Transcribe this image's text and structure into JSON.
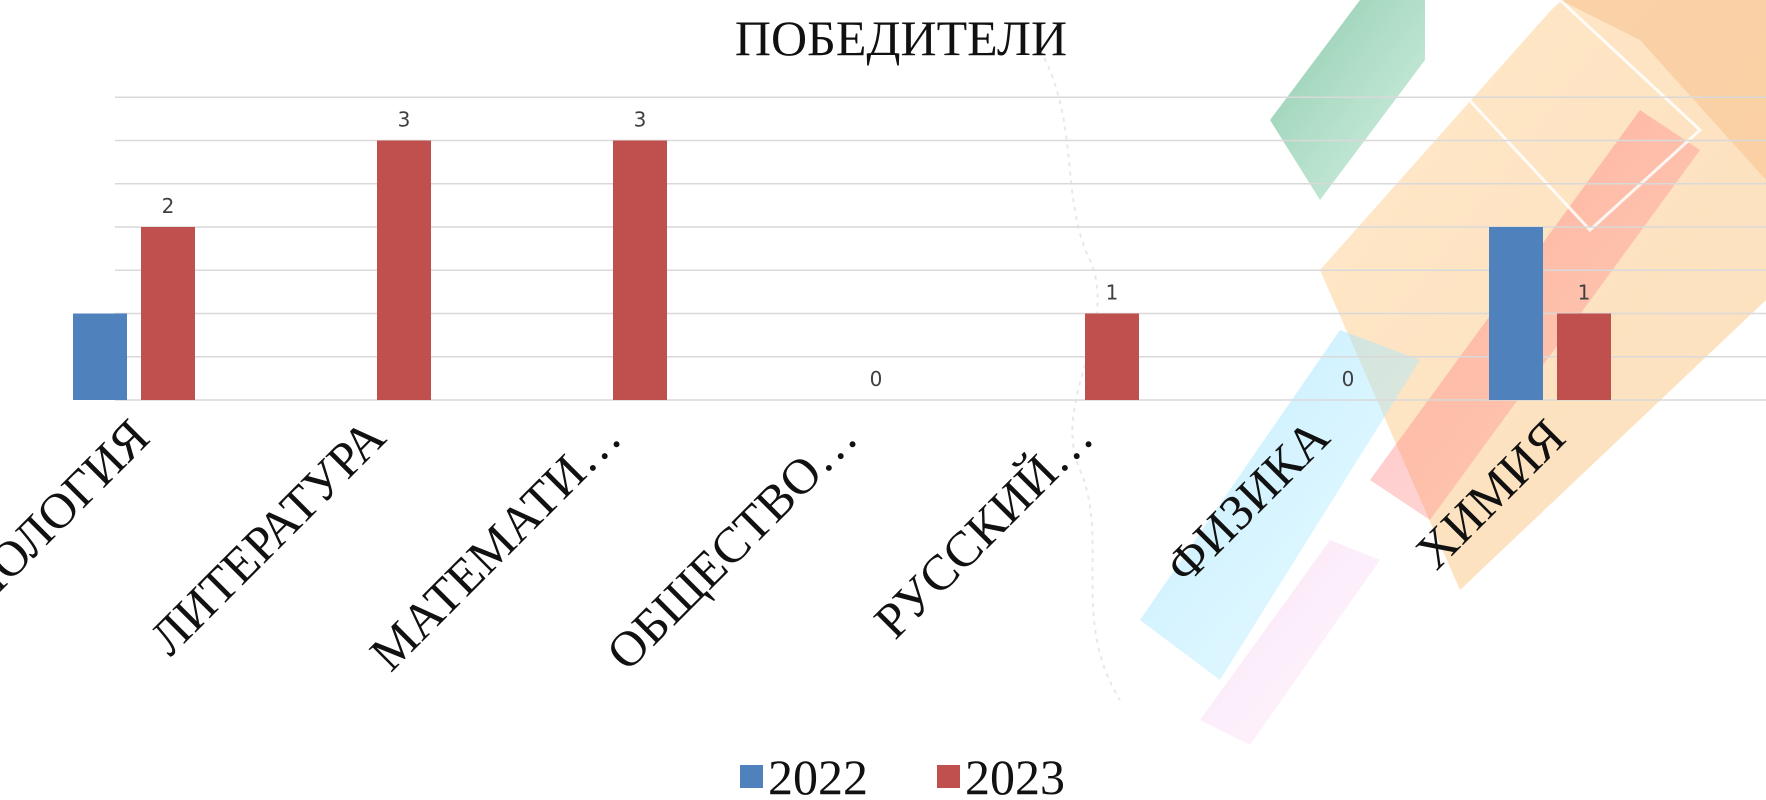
{
  "chart_data": {
    "type": "bar",
    "title": "ПОБЕДИТЕЛИ",
    "categories": [
      "БИОЛОГИЯ",
      "ЛИТЕРАТУРА",
      "МАТЕМАТИ…",
      "ОБЩЕСТВО…",
      "РУССКИЙ…",
      "ФИЗИКА",
      "ХИМИЯ"
    ],
    "series": [
      {
        "name": "2022",
        "color": "#4f81bd",
        "values": [
          1,
          0,
          0,
          0,
          0,
          0,
          2
        ]
      },
      {
        "name": "2023",
        "color": "#c0504d",
        "values": [
          2,
          3,
          3,
          0,
          1,
          0,
          1
        ]
      }
    ],
    "data_labels_series": "2023",
    "ylim": [
      0,
      3.5
    ],
    "grid": true,
    "legend_position": "bottom"
  }
}
